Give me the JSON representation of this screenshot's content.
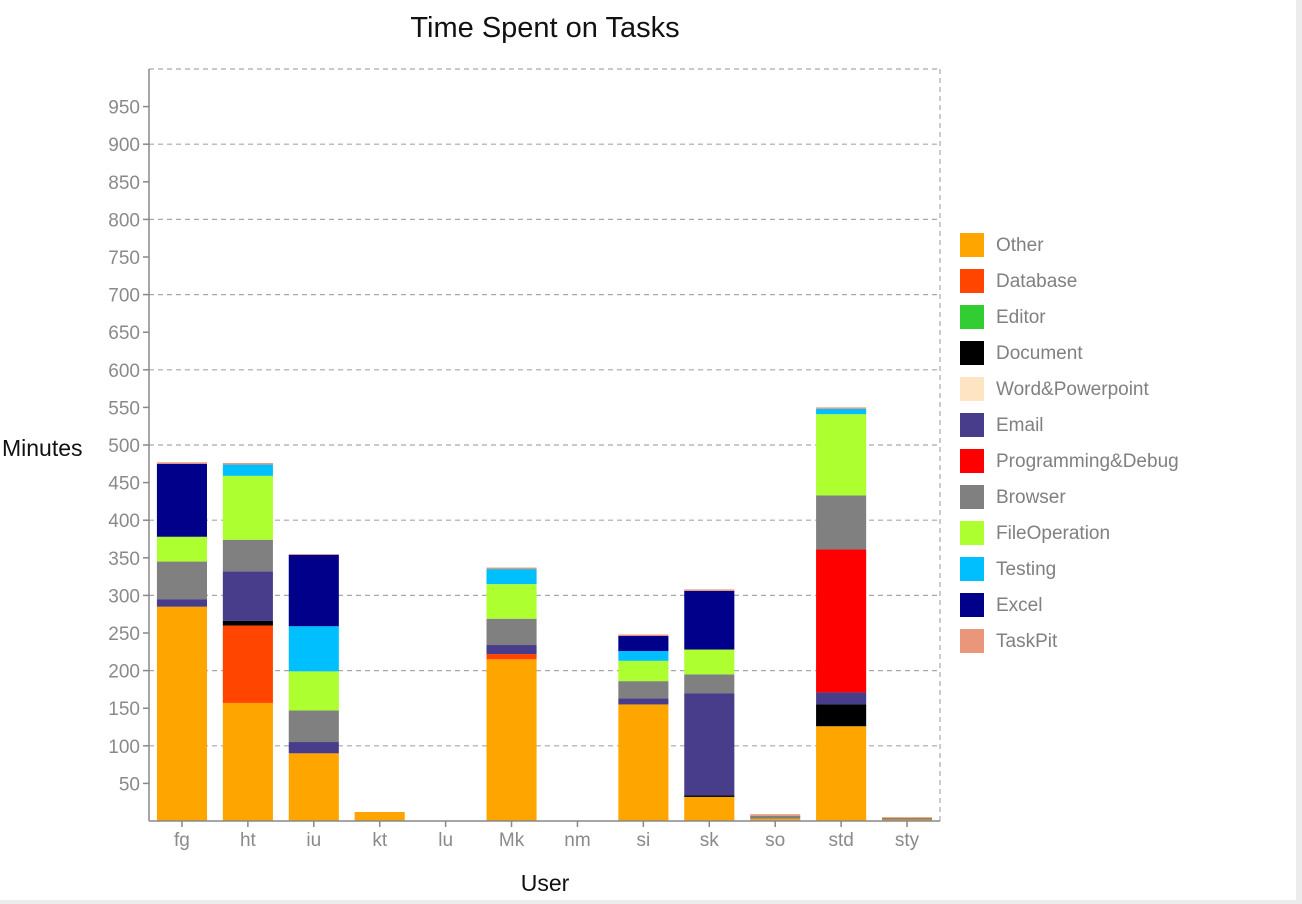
{
  "chart_data": {
    "type": "bar",
    "stacked": true,
    "title": "Time Spent on Tasks",
    "xlabel": "User",
    "ylabel": "Minutes",
    "ylim": [
      0,
      1000
    ],
    "yticks": [
      50,
      100,
      150,
      200,
      250,
      300,
      350,
      400,
      450,
      500,
      550,
      600,
      650,
      700,
      750,
      800,
      850,
      900,
      950
    ],
    "grid": "dashed, every 100",
    "legend_position": "right",
    "categories": [
      "fg",
      "ht",
      "iu",
      "kt",
      "lu",
      "Mk",
      "nm",
      "si",
      "sk",
      "so",
      "std",
      "sty"
    ],
    "series": [
      {
        "name": "Other",
        "color": "#FFA500",
        "values": [
          285,
          157,
          90,
          12,
          0,
          215,
          0,
          155,
          32,
          3,
          126,
          2
        ]
      },
      {
        "name": "Database",
        "color": "#FF4500",
        "values": [
          0,
          103,
          0,
          0,
          0,
          7,
          0,
          0,
          0,
          0,
          0,
          0
        ]
      },
      {
        "name": "Editor",
        "color": "#32CD32",
        "values": [
          0,
          0,
          0,
          0,
          0,
          0,
          0,
          0,
          0,
          0,
          0,
          0
        ]
      },
      {
        "name": "Document",
        "color": "#000000",
        "values": [
          0,
          6,
          0,
          0,
          0,
          0,
          0,
          0,
          2,
          0,
          29,
          0
        ]
      },
      {
        "name": "Word&Powerpoint",
        "color": "#FFE4C4",
        "values": [
          0,
          0,
          0,
          0,
          0,
          0,
          0,
          0,
          0,
          0,
          0,
          0
        ]
      },
      {
        "name": "Email",
        "color": "#483D8B",
        "values": [
          10,
          66,
          15,
          0,
          0,
          12,
          0,
          8,
          136,
          0,
          16,
          0
        ]
      },
      {
        "name": "Programming&Debug",
        "color": "#FF0000",
        "values": [
          0,
          0,
          0,
          0,
          0,
          0,
          0,
          0,
          0,
          0,
          190,
          0
        ]
      },
      {
        "name": "Browser",
        "color": "#808080",
        "values": [
          50,
          42,
          42,
          0,
          0,
          35,
          0,
          23,
          25,
          4,
          72,
          2
        ]
      },
      {
        "name": "FileOperation",
        "color": "#ADFF2F",
        "values": [
          33,
          85,
          52,
          0,
          0,
          46,
          0,
          27,
          33,
          0,
          108,
          0
        ]
      },
      {
        "name": "Testing",
        "color": "#00BFFF",
        "values": [
          0,
          15,
          60,
          0,
          0,
          20,
          0,
          13,
          0,
          0,
          7,
          0
        ]
      },
      {
        "name": "Excel",
        "color": "#00008B",
        "values": [
          97,
          0,
          95,
          0,
          0,
          0,
          0,
          20,
          78,
          0,
          0,
          0
        ]
      },
      {
        "name": "TaskPit",
        "color": "#E9967A",
        "values": [
          2,
          2,
          1,
          0,
          0,
          2,
          0,
          2,
          2,
          2,
          2,
          1
        ]
      }
    ]
  }
}
